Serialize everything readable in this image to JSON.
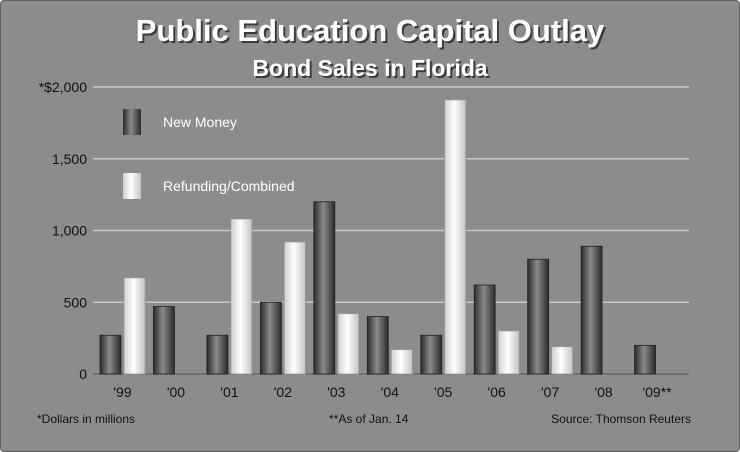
{
  "chart_data": {
    "type": "bar",
    "title": "Public Education Capital Outlay",
    "subtitle": "Bond Sales in Florida",
    "categories": [
      "'99",
      "'00",
      "'01",
      "'02",
      "'03",
      "'04",
      "'05",
      "'06",
      "'07",
      "'08",
      "'09**"
    ],
    "series": [
      {
        "name": "New Money",
        "values": [
          270,
          470,
          270,
          500,
          1200,
          400,
          270,
          620,
          800,
          890,
          200
        ],
        "color": "#555555"
      },
      {
        "name": "Refunding/Combined",
        "values": [
          670,
          0,
          1080,
          920,
          420,
          170,
          1910,
          300,
          190,
          0,
          0
        ],
        "color": "#e6e6e6"
      }
    ],
    "ylim": [
      0,
      2000
    ],
    "y_ticks": [
      {
        "value": 0,
        "label": "0"
      },
      {
        "value": 500,
        "label": "500"
      },
      {
        "value": 1000,
        "label": "1,000"
      },
      {
        "value": 1500,
        "label": "1,500"
      },
      {
        "value": 2000,
        "label": "*$2,000"
      }
    ],
    "grid": true,
    "legend_position": "top-left",
    "footnotes": {
      "left": "*Dollars in millions",
      "center": "**As of Jan. 14",
      "right": "Source: Thomson Reuters"
    },
    "background_color": "#8c8c8c"
  }
}
